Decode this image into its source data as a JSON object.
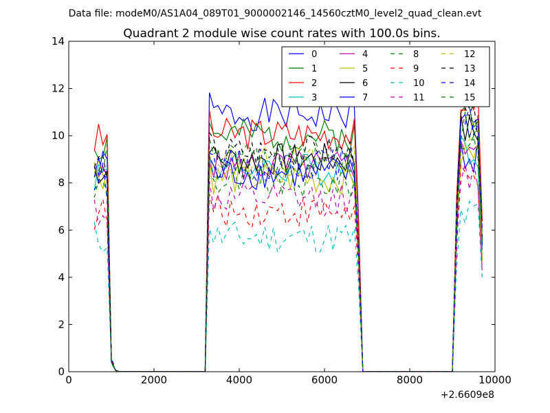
{
  "header": {
    "file_label": "Data file: modeM0/AS1A04_089T01_9000002146_14560cztM0_level2_quad_clean.evt"
  },
  "chart_data": {
    "type": "line",
    "title": "Quadrant 2 module wise count rates with 100.0s bins.",
    "xlabel": "",
    "ylabel": "",
    "x_offset_label": "+2.6609e8",
    "xlim": [
      0,
      10000
    ],
    "ylim": [
      0,
      14
    ],
    "x_ticks": [
      0,
      2000,
      4000,
      6000,
      8000,
      10000
    ],
    "y_ticks": [
      0,
      2,
      4,
      6,
      8,
      10,
      12,
      14
    ],
    "legend_position": "top-right",
    "grid": false,
    "x_segments": [
      [
        600,
        700,
        800,
        900,
        1000,
        1100,
        1200,
        1300,
        1400,
        1500,
        1600,
        1700,
        1800,
        1900,
        2000,
        2100,
        2200,
        2300,
        2400,
        2500,
        2600,
        2700,
        2800,
        2900,
        3000,
        3100,
        3200
      ],
      [
        3300,
        3400,
        3500,
        3600,
        3700,
        3800,
        3900,
        4000,
        4100,
        4200,
        4300,
        4400,
        4500,
        4600,
        4700,
        4800,
        4900,
        5000,
        5100,
        5200,
        5300,
        5400,
        5500,
        5600,
        5700,
        5800,
        5900,
        6000,
        6100,
        6200,
        6300,
        6400,
        6500,
        6600,
        6700,
        6800,
        6900
      ],
      [
        7000,
        7100,
        7200,
        7300,
        7400,
        7500,
        7600,
        7700,
        7800,
        7900,
        8000,
        8100,
        8200,
        8300,
        8400,
        8500,
        8600,
        8700,
        8800,
        8900,
        9000,
        9100,
        9200,
        9300,
        9400,
        9500,
        9600,
        9700
      ]
    ],
    "series": [
      {
        "name": "0",
        "color": "#0000ff",
        "style": "solid",
        "plateaus": [
          8.6,
          10.9,
          9.2
        ],
        "seed": 1
      },
      {
        "name": "1",
        "color": "#008000",
        "style": "solid",
        "plateaus": [
          9.6,
          10.0,
          11.0
        ],
        "seed": 2
      },
      {
        "name": "2",
        "color": "#ff0000",
        "style": "solid",
        "plateaus": [
          9.8,
          10.1,
          11.6
        ],
        "seed": 3
      },
      {
        "name": "3",
        "color": "#00bfbf",
        "style": "solid",
        "plateaus": [
          8.4,
          8.6,
          9.4
        ],
        "seed": 4
      },
      {
        "name": "4",
        "color": "#bf00bf",
        "style": "solid",
        "plateaus": [
          8.2,
          8.7,
          9.7
        ],
        "seed": 5
      },
      {
        "name": "5",
        "color": "#bfbf00",
        "style": "solid",
        "plateaus": [
          8.5,
          8.2,
          9.2
        ],
        "seed": 6
      },
      {
        "name": "6",
        "color": "#000000",
        "style": "solid",
        "plateaus": [
          8.6,
          9.0,
          10.2
        ],
        "seed": 7
      },
      {
        "name": "7",
        "color": "#0000ff",
        "style": "solid",
        "plateaus": [
          8.4,
          8.4,
          10.5
        ],
        "seed": 8
      },
      {
        "name": "8",
        "color": "#008000",
        "style": "dashed",
        "plateaus": [
          7.8,
          8.0,
          9.8
        ],
        "seed": 9
      },
      {
        "name": "9",
        "color": "#ff0000",
        "style": "dashed",
        "plateaus": [
          6.7,
          6.8,
          8.0
        ],
        "seed": 10
      },
      {
        "name": "10",
        "color": "#00bfbf",
        "style": "dashed",
        "plateaus": [
          5.7,
          5.7,
          6.6
        ],
        "seed": 11
      },
      {
        "name": "11",
        "color": "#bf00bf",
        "style": "dashed",
        "plateaus": [
          6.9,
          7.3,
          8.3
        ],
        "seed": 12
      },
      {
        "name": "12",
        "color": "#bfbf00",
        "style": "dashed",
        "plateaus": [
          8.3,
          8.9,
          10.0
        ],
        "seed": 13
      },
      {
        "name": "13",
        "color": "#000000",
        "style": "dashed",
        "plateaus": [
          8.8,
          9.3,
          10.6
        ],
        "seed": 14
      },
      {
        "name": "14",
        "color": "#0000ff",
        "style": "dashed",
        "plateaus": [
          8.1,
          8.8,
          10.7
        ],
        "seed": 15
      },
      {
        "name": "15",
        "color": "#008000",
        "style": "dashed",
        "plateaus": [
          8.9,
          9.0,
          10.4
        ],
        "seed": 16
      }
    ]
  }
}
